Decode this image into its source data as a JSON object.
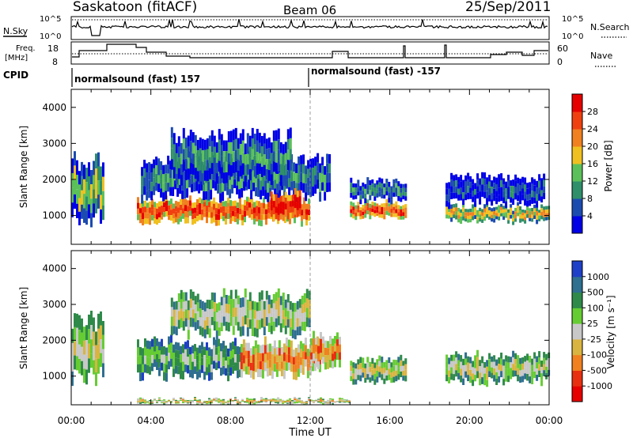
{
  "header": {
    "title": "Saskatoon (fitACF)",
    "beam": "Beam 06",
    "date": "25/Sep/2011"
  },
  "top_panels": {
    "nsky_label": "N.Sky",
    "nsearch_label": "N.Search",
    "ticks_count": [
      "10^5",
      "10^0"
    ],
    "freq_label_1": "Freq.",
    "freq_label_2": "[MHz]",
    "freq_ticks": [
      "18",
      "8"
    ],
    "nave_label": "Nave",
    "nave_ticks": [
      "60",
      "0"
    ],
    "cpid_label": "CPID",
    "cpid_segments": [
      "normalsound (fast) 157",
      "normalsound (fast) -157"
    ]
  },
  "colors": {
    "power": [
      "#0000e6",
      "#1c4bb0",
      "#2f8f6a",
      "#5cc05a",
      "#f0c020",
      "#f08020",
      "#f04010",
      "#e60000"
    ],
    "velocity": [
      "#1e3fc8",
      "#2f6f8f",
      "#2f8a4a",
      "#66cc33",
      "#c8c8c8",
      "#d9b440",
      "#f08020",
      "#e83010",
      "#e60000"
    ]
  },
  "chart_data": [
    {
      "type": "heatmap",
      "panel": "power",
      "ylabel": "Slant Range [km]",
      "ylim": [
        200,
        4500
      ],
      "xlim": [
        "00:00",
        "24:00"
      ],
      "y_ticks": [
        "1000",
        "2000",
        "3000",
        "4000"
      ],
      "x_ticks": [
        "00:00",
        "04:00",
        "08:00",
        "12:00",
        "16:00",
        "20:00",
        "00:00"
      ],
      "colorbar": {
        "label": "Power [dB]",
        "ticks": [
          "4",
          "8",
          "12",
          "16",
          "20",
          "24",
          "28"
        ]
      },
      "bands": [
        {
          "t0": 0.0,
          "t1": 1.6,
          "r0": 900,
          "r1": 2600,
          "level": 3
        },
        {
          "t0": 3.3,
          "t1": 12.0,
          "r0": 800,
          "r1": 1500,
          "level": 6
        },
        {
          "t0": 3.5,
          "t1": 13.0,
          "r0": 1500,
          "r1": 2600,
          "level": 2
        },
        {
          "t0": 5.0,
          "t1": 11.0,
          "r0": 2000,
          "r1": 3300,
          "level": 2
        },
        {
          "t0": 10.0,
          "t1": 11.5,
          "r0": 900,
          "r1": 1700,
          "level": 7
        },
        {
          "t0": 14.0,
          "t1": 16.8,
          "r0": 900,
          "r1": 1400,
          "level": 6
        },
        {
          "t0": 14.0,
          "t1": 16.8,
          "r0": 1400,
          "r1": 2000,
          "level": 2
        },
        {
          "t0": 18.8,
          "t1": 24.0,
          "r0": 800,
          "r1": 1300,
          "level": 4
        },
        {
          "t0": 18.8,
          "t1": 23.8,
          "r0": 1300,
          "r1": 2100,
          "level": 1
        }
      ]
    },
    {
      "type": "heatmap",
      "panel": "velocity",
      "ylabel": "Slant Range [km]",
      "ylim": [
        200,
        4500
      ],
      "xlim": [
        "00:00",
        "24:00"
      ],
      "y_ticks": [
        "1000",
        "2000",
        "3000",
        "4000"
      ],
      "x_ticks": [
        "00:00",
        "04:00",
        "08:00",
        "12:00",
        "16:00",
        "20:00",
        "00:00"
      ],
      "xlabel": "Time UT",
      "colorbar": {
        "label": "Velocity [m s⁻¹]",
        "ticks": [
          "1000",
          "500",
          "100",
          "25",
          "-25",
          "-100",
          "-500",
          "-1000"
        ]
      },
      "bands": [
        {
          "t0": 0.0,
          "t1": 1.6,
          "r0": 900,
          "r1": 2600,
          "level": 4
        },
        {
          "t0": 3.3,
          "t1": 8.5,
          "r0": 1000,
          "r1": 2000,
          "level": 3
        },
        {
          "t0": 8.5,
          "t1": 12.5,
          "r0": 1000,
          "r1": 2000,
          "level": 6
        },
        {
          "t0": 5.0,
          "t1": 12.0,
          "r0": 2200,
          "r1": 3300,
          "level": 4
        },
        {
          "t0": 12.0,
          "t1": 13.5,
          "r0": 1300,
          "r1": 2200,
          "level": 6
        },
        {
          "t0": 14.0,
          "t1": 16.8,
          "r0": 800,
          "r1": 1500,
          "level": 4
        },
        {
          "t0": 18.8,
          "t1": 24.0,
          "r0": 800,
          "r1": 1600,
          "level": 4
        },
        {
          "t0": 3.3,
          "t1": 14.0,
          "r0": 200,
          "r1": 400,
          "level": 5
        }
      ]
    }
  ]
}
